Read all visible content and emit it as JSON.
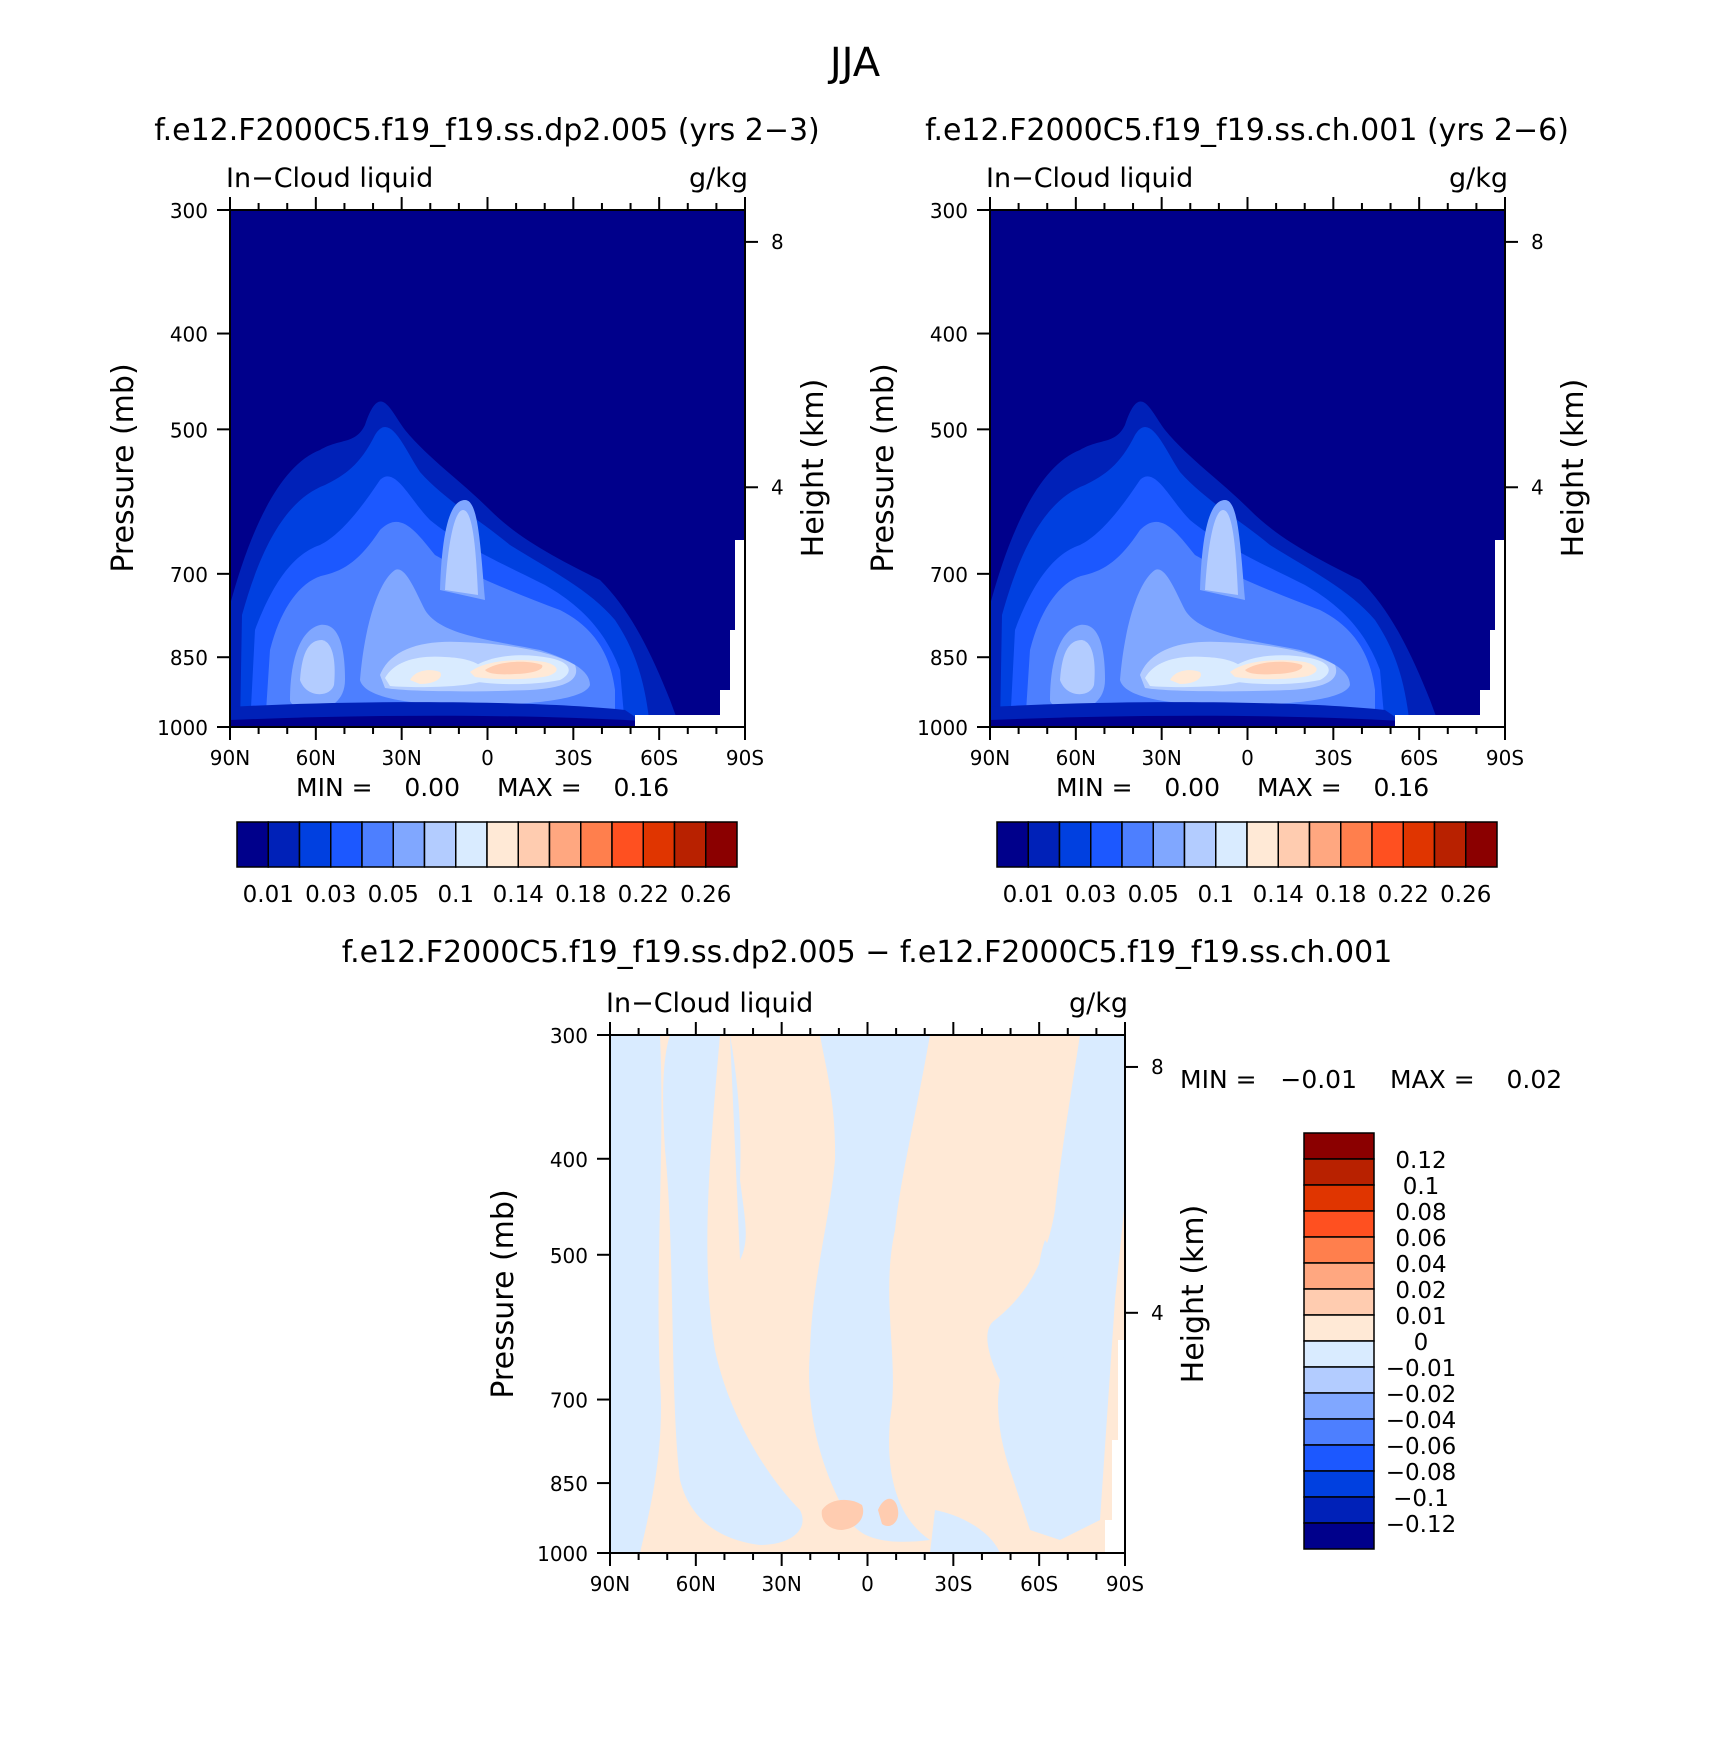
{
  "figure": {
    "title": "JJA"
  },
  "chart_data": [
    {
      "type": "heatmap",
      "title": "f.e12.F2000C5.f19_f19.ss.dp2.005 (yrs 2−3)",
      "left_string": "In−Cloud liquid",
      "right_string": "g/kg",
      "xlabel": "",
      "ylabel": "Pressure (mb)",
      "y2label": "Height (km)",
      "x_ticks": [
        "90N",
        "60N",
        "30N",
        "0",
        "30S",
        "60S",
        "90S"
      ],
      "y_ticks": [
        "300",
        "400",
        "500",
        "700",
        "850",
        "1000"
      ],
      "y2_ticks": [
        "8",
        "4"
      ],
      "min_text": "MIN =    0.00",
      "max_text": "MAX =    0.16",
      "colorbar_labels": [
        "0.01",
        "0.03",
        "0.05",
        "0.1",
        "0.14",
        "0.18",
        "0.22",
        "0.26"
      ],
      "colorbar_colors": [
        "#00008b",
        "#0021b8",
        "#0040e0",
        "#1c58ff",
        "#4d7fff",
        "#80a7ff",
        "#b3ccff",
        "#d9ebff",
        "#ffe9d6",
        "#ffccb0",
        "#ffa780",
        "#ff7f4d",
        "#ff5020",
        "#e03500",
        "#b82100",
        "#8b0000"
      ]
    },
    {
      "type": "heatmap",
      "title": "f.e12.F2000C5.f19_f19.ss.ch.001 (yrs 2−6)",
      "left_string": "In−Cloud liquid",
      "right_string": "g/kg",
      "xlabel": "",
      "ylabel": "Pressure (mb)",
      "y2label": "Height (km)",
      "x_ticks": [
        "90N",
        "60N",
        "30N",
        "0",
        "30S",
        "60S",
        "90S"
      ],
      "y_ticks": [
        "300",
        "400",
        "500",
        "700",
        "850",
        "1000"
      ],
      "y2_ticks": [
        "8",
        "4"
      ],
      "min_text": "MIN =    0.00",
      "max_text": "MAX =    0.16",
      "colorbar_labels": [
        "0.01",
        "0.03",
        "0.05",
        "0.1",
        "0.14",
        "0.18",
        "0.22",
        "0.26"
      ],
      "colorbar_colors": [
        "#00008b",
        "#0021b8",
        "#0040e0",
        "#1c58ff",
        "#4d7fff",
        "#80a7ff",
        "#b3ccff",
        "#d9ebff",
        "#ffe9d6",
        "#ffccb0",
        "#ffa780",
        "#ff7f4d",
        "#ff5020",
        "#e03500",
        "#b82100",
        "#8b0000"
      ]
    },
    {
      "type": "heatmap",
      "title": "f.e12.F2000C5.f19_f19.ss.dp2.005 − f.e12.F2000C5.f19_f19.ss.ch.001",
      "left_string": "In−Cloud liquid",
      "right_string": "g/kg",
      "xlabel": "",
      "ylabel": "Pressure (mb)",
      "y2label": "Height (km)",
      "x_ticks": [
        "90N",
        "60N",
        "30N",
        "0",
        "30S",
        "60S",
        "90S"
      ],
      "y_ticks": [
        "300",
        "400",
        "500",
        "700",
        "850",
        "1000"
      ],
      "y2_ticks": [
        "8",
        "4"
      ],
      "min_text": "MIN =   −0.01",
      "max_text": "MAX =    0.02",
      "colorbar_labels": [
        "0.12",
        "0.1",
        "0.08",
        "0.06",
        "0.04",
        "0.02",
        "0.01",
        "0",
        "−0.01",
        "−0.02",
        "−0.04",
        "−0.06",
        "−0.08",
        "−0.1",
        "−0.12"
      ],
      "colorbar_colors": [
        "#8b0000",
        "#b82100",
        "#e03500",
        "#ff5020",
        "#ff7f4d",
        "#ffa780",
        "#ffccb0",
        "#ffe9d6",
        "#d9ebff",
        "#b3ccff",
        "#80a7ff",
        "#4d7fff",
        "#1c58ff",
        "#0040e0",
        "#0021b8",
        "#00008b"
      ]
    }
  ]
}
